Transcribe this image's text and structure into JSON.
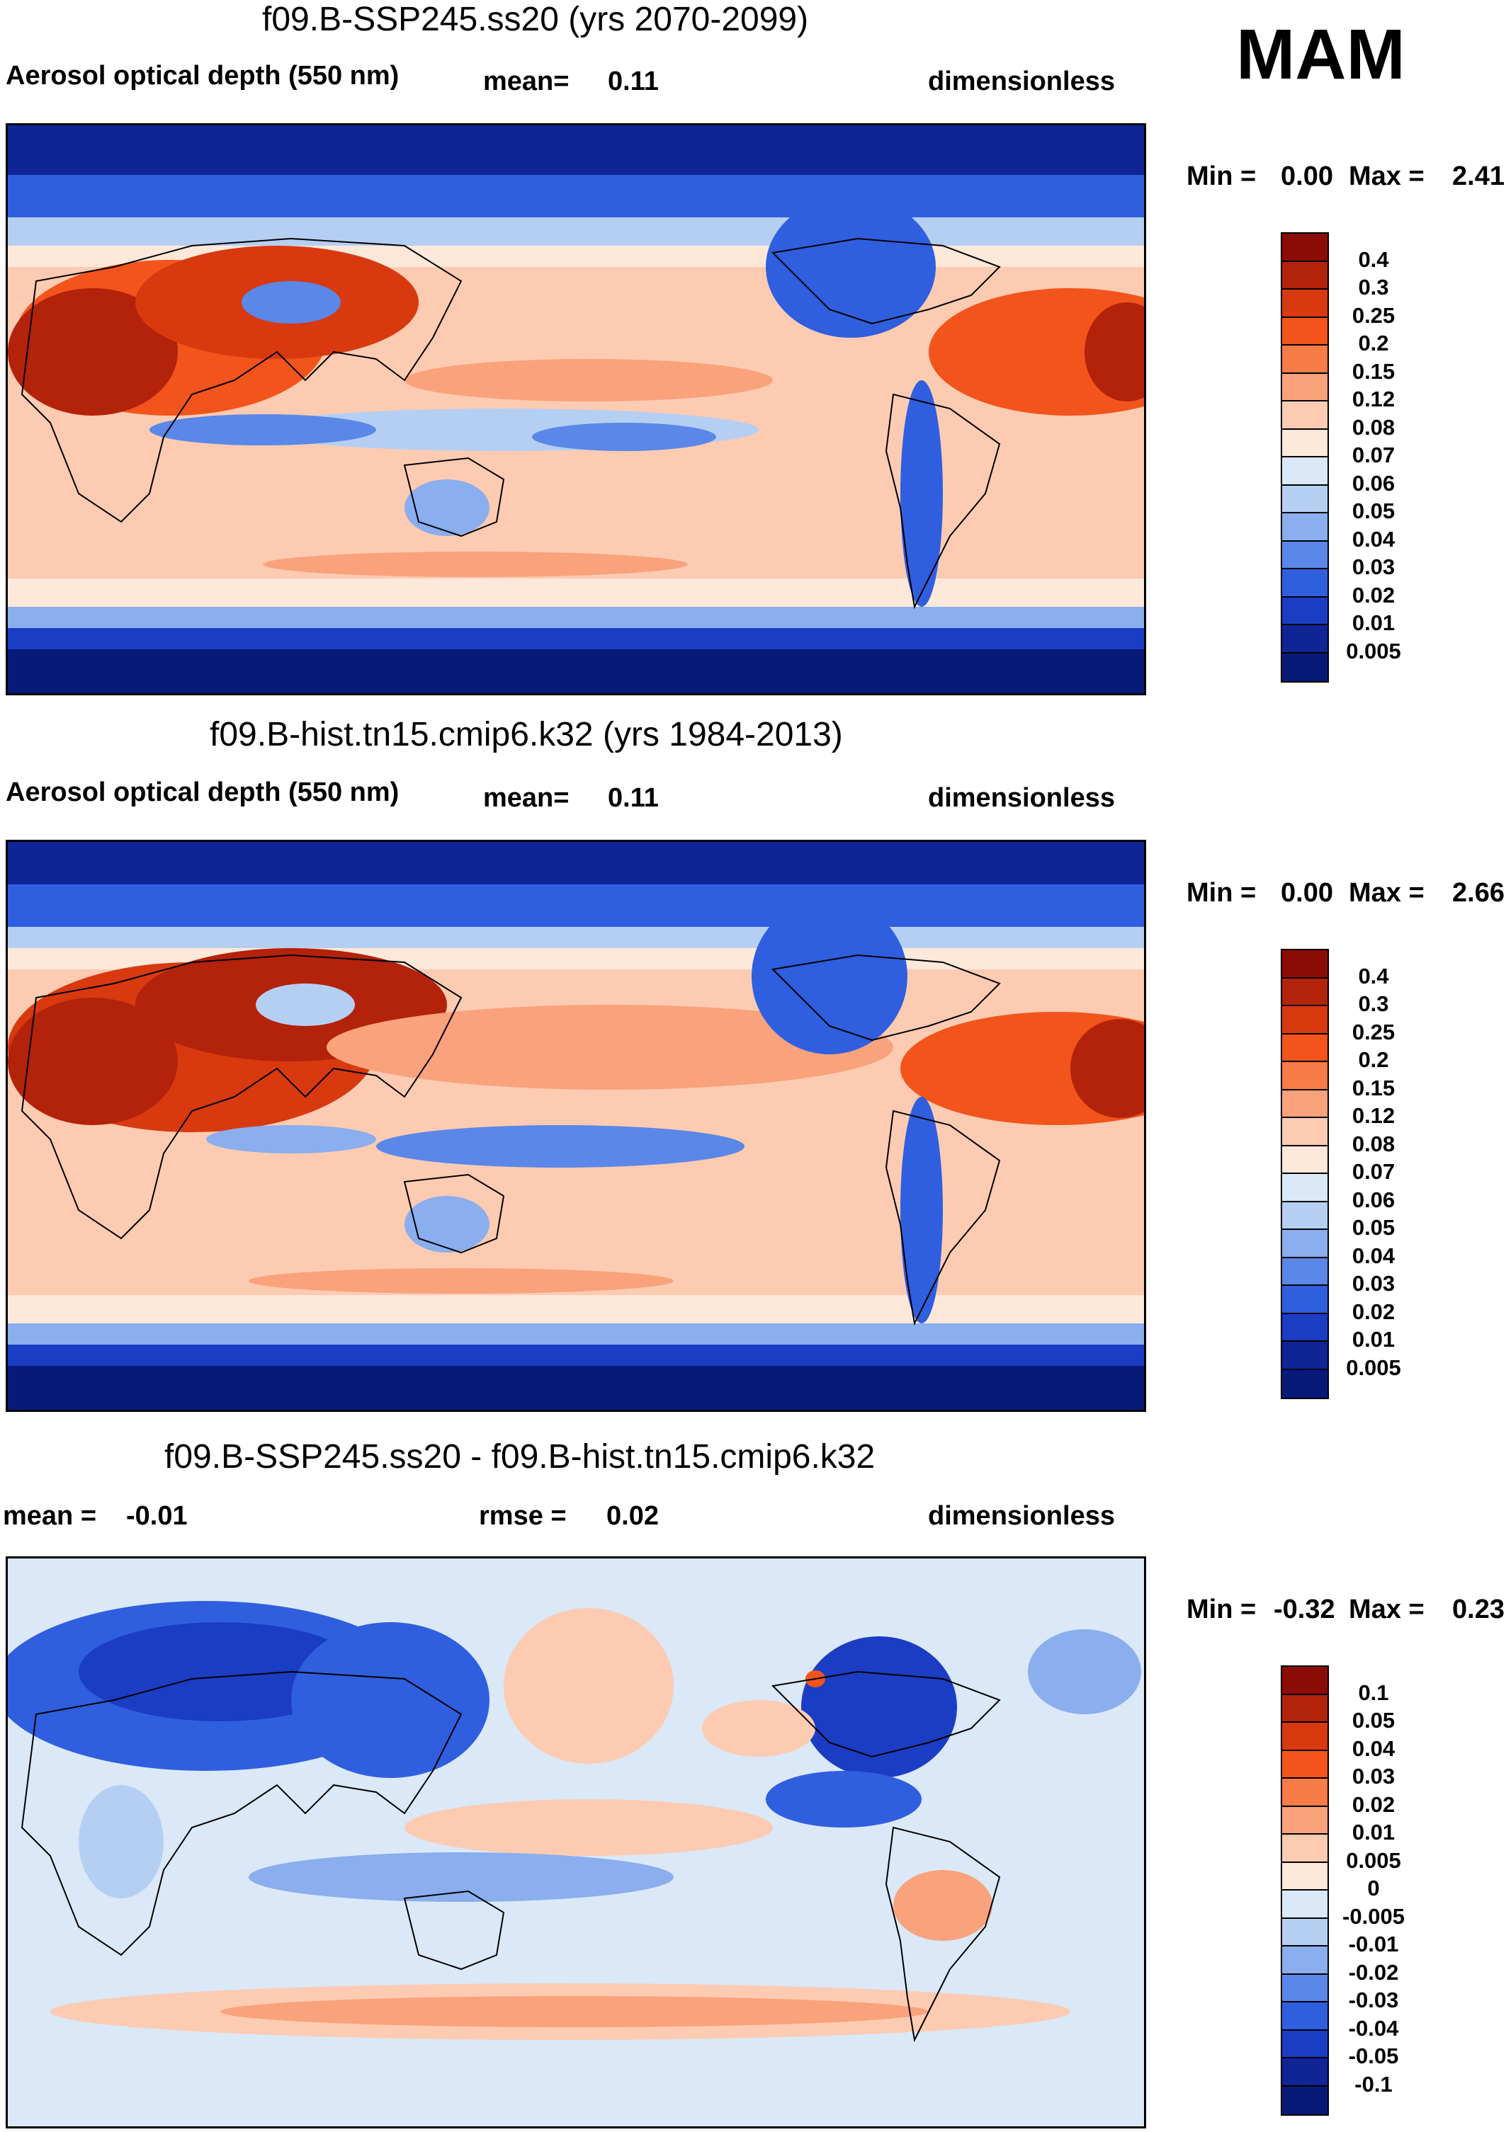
{
  "season": "MAM",
  "panels": [
    {
      "title": "f09.B-SSP245.ss20 (yrs 2070-2099)",
      "left_label": "Aerosol optical depth (550 nm)",
      "mid_label": "mean=",
      "mid_value": "0.11",
      "right_label": "dimensionless",
      "min_label": "Min =",
      "min_value": "0.00",
      "max_label": "Max =",
      "max_value": "2.41",
      "levels": [
        "0.4",
        "0.3",
        "0.25",
        "0.2",
        "0.15",
        "0.12",
        "0.08",
        "0.07",
        "0.06",
        "0.05",
        "0.04",
        "0.03",
        "0.02",
        "0.01",
        "0.005"
      ],
      "colors": [
        "#8b0c05",
        "#b3220a",
        "#d8390f",
        "#f2541b",
        "#f77c48",
        "#f9a27c",
        "#fccbb2",
        "#fde8da",
        "#dbe8f7",
        "#b5cff3",
        "#8aaeee",
        "#5a87e8",
        "#2f5fdf",
        "#1a3dc4",
        "#0f2596",
        "#081a78"
      ]
    },
    {
      "title": "f09.B-hist.tn15.cmip6.k32 (yrs 1984-2013)",
      "left_label": "Aerosol optical depth (550 nm)",
      "mid_label": "mean=",
      "mid_value": "0.11",
      "right_label": "dimensionless",
      "min_label": "Min =",
      "min_value": "0.00",
      "max_label": "Max =",
      "max_value": "2.66",
      "levels": [
        "0.4",
        "0.3",
        "0.25",
        "0.2",
        "0.15",
        "0.12",
        "0.08",
        "0.07",
        "0.06",
        "0.05",
        "0.04",
        "0.03",
        "0.02",
        "0.01",
        "0.005"
      ],
      "colors": [
        "#8b0c05",
        "#b3220a",
        "#d8390f",
        "#f2541b",
        "#f77c48",
        "#f9a27c",
        "#fccbb2",
        "#fde8da",
        "#dbe8f7",
        "#b5cff3",
        "#8aaeee",
        "#5a87e8",
        "#2f5fdf",
        "#1a3dc4",
        "#0f2596",
        "#081a78"
      ]
    },
    {
      "title": "f09.B-SSP245.ss20 - f09.B-hist.tn15.cmip6.k32",
      "left_label": "mean =",
      "left_value": "-0.01",
      "mid_label": "rmse =",
      "mid_value": "0.02",
      "right_label": "dimensionless",
      "min_label": "Min =",
      "min_value": "-0.32",
      "max_label": "Max =",
      "max_value": "0.23",
      "levels": [
        "0.1",
        "0.05",
        "0.04",
        "0.03",
        "0.02",
        "0.01",
        "0.005",
        "0",
        "-0.005",
        "-0.01",
        "-0.02",
        "-0.03",
        "-0.04",
        "-0.05",
        "-0.1"
      ],
      "colors": [
        "#8b0c05",
        "#b3220a",
        "#d8390f",
        "#f2541b",
        "#f77c48",
        "#f9a27c",
        "#fccbb2",
        "#fde8da",
        "#dbe8f7",
        "#b5cff3",
        "#8aaeee",
        "#5a87e8",
        "#2f5fdf",
        "#1a3dc4",
        "#0f2596",
        "#081a78"
      ]
    }
  ]
}
